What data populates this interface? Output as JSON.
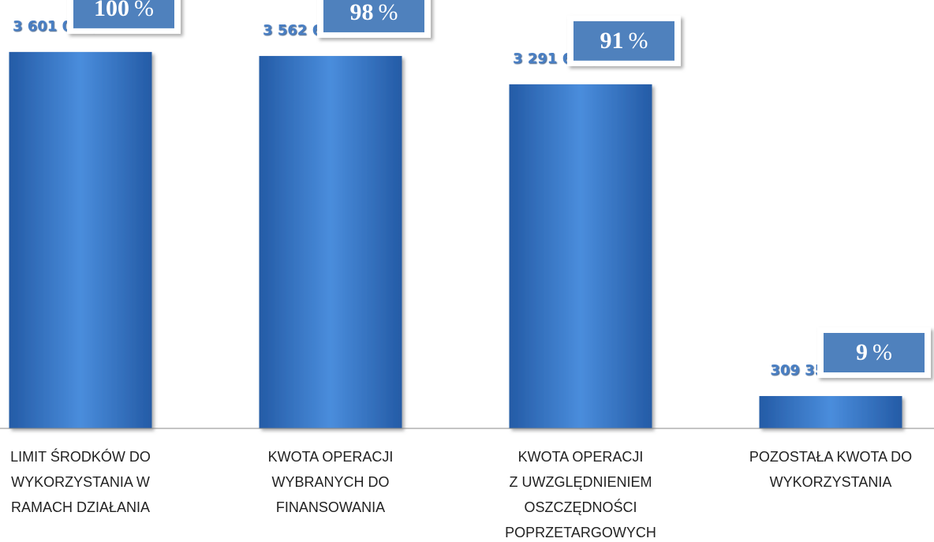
{
  "chart_data": {
    "type": "bar",
    "categories": [
      [
        "LIMIT ŚRODKÓW DO",
        "WYKORZYSTANIA W",
        "RAMACH  DZIAŁANIA"
      ],
      [
        "KWOTA OPERACJI",
        "WYBRANYCH DO",
        "FINANSOWANIA"
      ],
      [
        "KWOTA OPERACJI",
        "Z UWZGLĘDNIENIEM",
        "OSZCZĘDNOŚCI",
        "POPRZETARGOWYCH"
      ],
      [
        "POZOSTAŁA KWOTA DO",
        "WYKORZYSTANIA"
      ]
    ],
    "values": [
      3601000,
      3562681.8,
      3291644.8,
      309355.2
    ],
    "value_labels": [
      "3 601 000,00",
      "3 562 681,80",
      "3 291 644,80",
      "309 355,20"
    ],
    "percentages": {
      "values": [
        100,
        98,
        91,
        9
      ],
      "unit": "%"
    },
    "color": "#3a78c9",
    "ylim": [
      0,
      4000000
    ]
  }
}
